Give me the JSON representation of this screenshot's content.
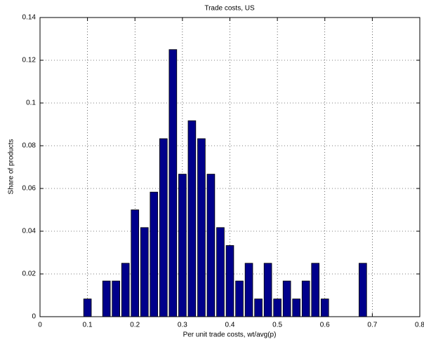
{
  "chart_data": {
    "type": "bar",
    "title": "Trade costs, US",
    "x_label": "Per unit trade costs, wt/avg(p)",
    "y_label": "Share of products",
    "x": [
      0.1,
      0.14,
      0.16,
      0.18,
      0.2,
      0.22,
      0.24,
      0.26,
      0.28,
      0.3,
      0.32,
      0.34,
      0.36,
      0.38,
      0.4,
      0.42,
      0.44,
      0.46,
      0.48,
      0.5,
      0.52,
      0.54,
      0.56,
      0.58,
      0.6,
      0.68
    ],
    "values": [
      0.0083,
      0.0167,
      0.0167,
      0.025,
      0.05,
      0.0417,
      0.0583,
      0.0833,
      0.125,
      0.0667,
      0.0917,
      0.0833,
      0.0667,
      0.0417,
      0.0333,
      0.0167,
      0.025,
      0.0083,
      0.025,
      0.0083,
      0.0167,
      0.0083,
      0.0167,
      0.025,
      0.0083,
      0.025
    ],
    "color": "#00008b",
    "xlim": [
      0,
      0.8
    ],
    "xticks": [
      0,
      0.1,
      0.2,
      0.3,
      0.4,
      0.5,
      0.6,
      0.7,
      0.8
    ],
    "ylim": [
      0,
      0.14
    ],
    "yticks": [
      0,
      0.02,
      0.04,
      0.06,
      0.08,
      0.1,
      0.12,
      0.14
    ],
    "grid": true
  }
}
